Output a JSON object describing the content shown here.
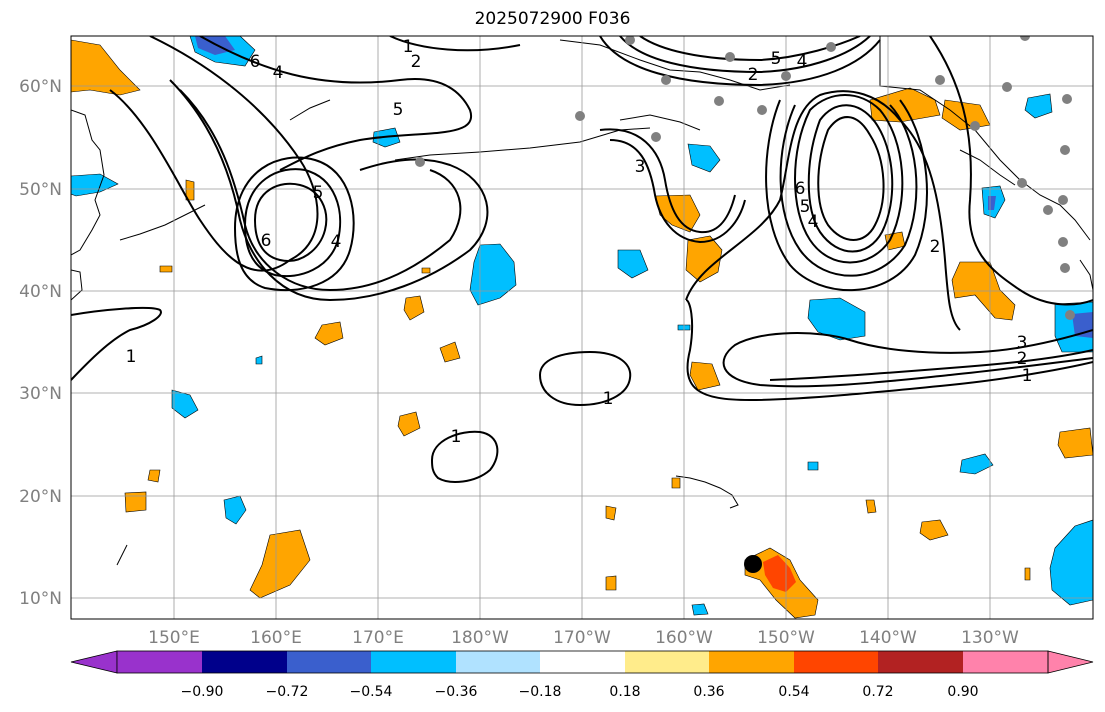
{
  "title": "2025072900 F036",
  "map": {
    "lat_labels": [
      "60°N",
      "50°N",
      "40°N",
      "30°N",
      "20°N",
      "10°N"
    ],
    "lon_labels": [
      "150°E",
      "160°E",
      "170°E",
      "180°W",
      "170°W",
      "160°W",
      "150°W",
      "140°W",
      "130°W"
    ],
    "contour_labels": [
      "1",
      "2",
      "6",
      "5",
      "4",
      "3",
      "5",
      "4",
      "5",
      "4",
      "6",
      "2",
      "6",
      "5",
      "4",
      "2",
      "1",
      "2",
      "3",
      "1",
      "1",
      "1"
    ],
    "grid_color": "#999999",
    "coast_color": "#000000"
  },
  "colorbar": {
    "tick_labels": [
      "−0.90",
      "−0.72",
      "−0.54",
      "−0.36",
      "−0.18",
      "0.18",
      "0.36",
      "0.54",
      "0.72",
      "0.90"
    ],
    "colors": [
      "#9932cc",
      "#00008b",
      "#3a5fcd",
      "#00bfff",
      "#b0e2ff",
      "#ffffff",
      "#ffec8b",
      "#ffa500",
      "#ff4500",
      "#b22222",
      "#ff82ab"
    ]
  },
  "shading_colors": {
    "orange": "#ffa500",
    "light_blue": "#00bfff",
    "blue": "#3a5fcd",
    "red": "#ff4500"
  },
  "marker_color": "#808080"
}
